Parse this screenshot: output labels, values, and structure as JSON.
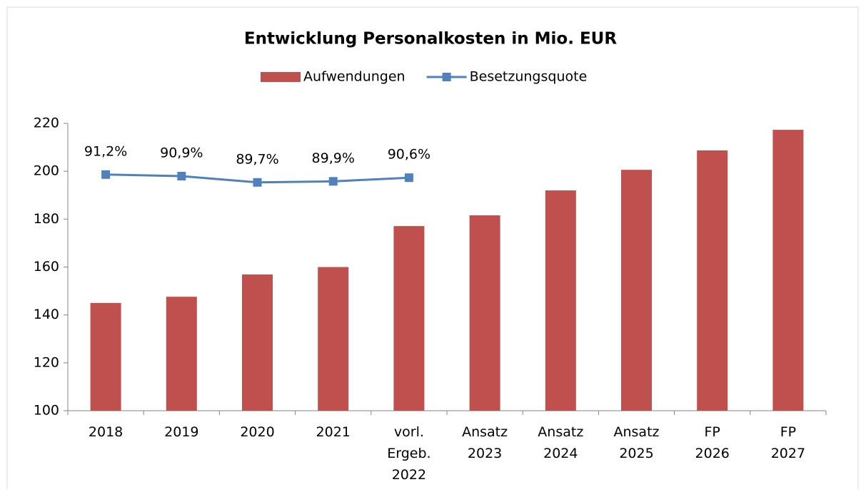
{
  "chart_data": {
    "type": "bar-line",
    "title": "Entwicklung Personalkosten in Mio. EUR",
    "categories": [
      "2018",
      "2019",
      "2020",
      "2021",
      "vorl. Ergeb. 2022",
      "Ansatz 2023",
      "Ansatz 2024",
      "Ansatz 2025",
      "FP 2026",
      "FP 2027"
    ],
    "series": [
      {
        "name": "Aufwendungen",
        "color": "#c0504d",
        "kind": "bar",
        "values": [
          145,
          147.6,
          156.9,
          160,
          177.1,
          181.6,
          192,
          200.6,
          208.7,
          217.3
        ]
      },
      {
        "name": "Besetzungsquote",
        "color": "#4f81bd",
        "kind": "line",
        "axis": "y2",
        "values": [
          91.2,
          90.9,
          89.7,
          89.9,
          90.6,
          null,
          null,
          null,
          null,
          null
        ],
        "value_labels": [
          "91,2%",
          "90,9%",
          "89,7%",
          "89,9%",
          "90,6%",
          null,
          null,
          null,
          null,
          null
        ]
      }
    ],
    "ylim": [
      100,
      220
    ],
    "yticks": [
      100,
      120,
      140,
      160,
      180,
      200,
      220
    ],
    "y2lim": [
      46,
      101
    ],
    "legend": "top"
  }
}
